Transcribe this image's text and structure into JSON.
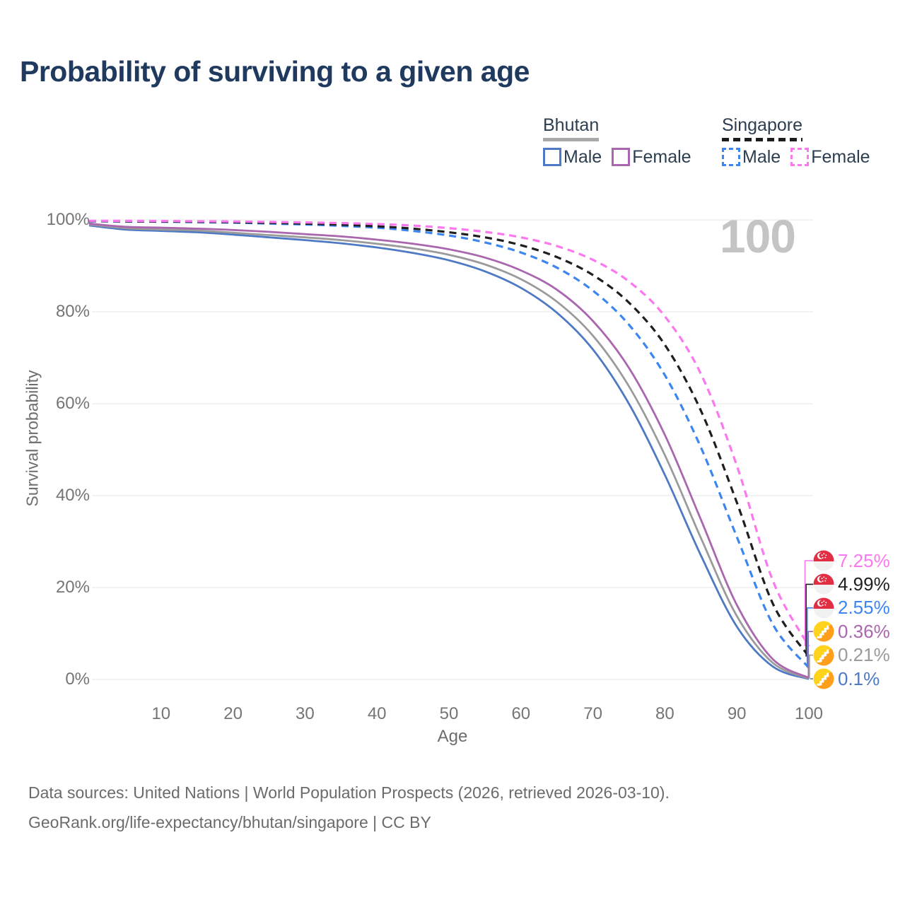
{
  "title": "Probability of surviving to a given age",
  "watermark_age": "100",
  "legend": {
    "groups": [
      {
        "country": "Bhutan",
        "line_style": "solid",
        "underline_color": "#a8a8a8",
        "items": [
          {
            "label": "Male",
            "color": "#4e79c5",
            "dashed": false
          },
          {
            "label": "Female",
            "color": "#aa66ae",
            "dashed": false
          }
        ]
      },
      {
        "country": "Singapore",
        "line_style": "dashed",
        "underline_color": "#1c1c1c",
        "items": [
          {
            "label": "Male",
            "color": "#3b86f0",
            "dashed": true
          },
          {
            "label": "Female",
            "color": "#fb78ee",
            "dashed": true
          }
        ]
      }
    ]
  },
  "axes": {
    "y_label": "Survival probability",
    "x_label": "Age",
    "y_ticks": [
      {
        "label": "0%",
        "value": 0
      },
      {
        "label": "20%",
        "value": 20
      },
      {
        "label": "40%",
        "value": 40
      },
      {
        "label": "60%",
        "value": 60
      },
      {
        "label": "80%",
        "value": 80
      },
      {
        "label": "100%",
        "value": 100
      }
    ],
    "x_ticks": [
      {
        "label": "10",
        "value": 10
      },
      {
        "label": "20",
        "value": 20
      },
      {
        "label": "30",
        "value": 30
      },
      {
        "label": "40",
        "value": 40
      },
      {
        "label": "50",
        "value": 50
      },
      {
        "label": "60",
        "value": 60
      },
      {
        "label": "70",
        "value": 70
      },
      {
        "label": "80",
        "value": 80
      },
      {
        "label": "90",
        "value": 90
      },
      {
        "label": "100",
        "value": 100
      }
    ]
  },
  "chart_data": {
    "type": "line",
    "title": "Probability of surviving to a given age",
    "xlabel": "Age",
    "ylabel": "Survival probability",
    "xlim": [
      0,
      100
    ],
    "ylim": [
      0,
      100
    ],
    "grid": "horizontal",
    "legend_position": "top-right",
    "x": [
      0,
      5,
      10,
      15,
      20,
      25,
      30,
      35,
      40,
      45,
      50,
      55,
      60,
      65,
      70,
      75,
      80,
      85,
      90,
      95,
      100
    ],
    "series": [
      {
        "name": "Bhutan Male",
        "country": "Bhutan",
        "sex": "Male",
        "color": "#4e79c5",
        "dashed": false,
        "flag": "bt",
        "end_label": "0.1%",
        "values": [
          98.8,
          97.9,
          97.6,
          97.3,
          96.8,
          96.2,
          95.6,
          94.9,
          94.0,
          92.8,
          91.2,
          88.8,
          85.2,
          79.8,
          71.8,
          60.0,
          44.5,
          27.0,
          11.5,
          2.8,
          0.1
        ]
      },
      {
        "name": "Bhutan Both sexes",
        "country": "Bhutan",
        "sex": "Both",
        "color": "#9b9b9b",
        "dashed": false,
        "flag": "bt",
        "end_label": "0.21%",
        "values": [
          99.0,
          98.2,
          97.9,
          97.7,
          97.2,
          96.7,
          96.2,
          95.6,
          94.8,
          93.8,
          92.4,
          90.3,
          87.1,
          82.2,
          74.8,
          63.8,
          48.8,
          30.8,
          13.8,
          3.6,
          0.21
        ]
      },
      {
        "name": "Bhutan Female",
        "country": "Bhutan",
        "sex": "Female",
        "color": "#aa66ae",
        "dashed": false,
        "flag": "bt",
        "end_label": "0.36%",
        "values": [
          99.2,
          98.5,
          98.3,
          98.1,
          97.8,
          97.4,
          96.9,
          96.4,
          95.7,
          94.8,
          93.6,
          91.8,
          89.0,
          84.8,
          78.0,
          67.8,
          53.2,
          34.8,
          16.2,
          4.4,
          0.36
        ]
      },
      {
        "name": "Singapore Male",
        "country": "Singapore",
        "sex": "Male",
        "color": "#3b86f0",
        "dashed": true,
        "flag": "sg",
        "end_label": "2.55%",
        "values": [
          99.7,
          99.65,
          99.6,
          99.5,
          99.4,
          99.2,
          99.0,
          98.7,
          98.3,
          97.6,
          96.6,
          95.1,
          92.9,
          89.6,
          84.6,
          77.2,
          66.2,
          50.5,
          31.0,
          12.0,
          2.55
        ]
      },
      {
        "name": "Singapore Both sexes",
        "country": "Singapore",
        "sex": "Both",
        "color": "#1f1f1f",
        "dashed": true,
        "flag": "sg",
        "end_label": "4.99%",
        "values": [
          99.75,
          99.7,
          99.65,
          99.6,
          99.5,
          99.35,
          99.2,
          98.95,
          98.6,
          98.1,
          97.3,
          96.2,
          94.5,
          91.9,
          88.0,
          82.0,
          72.8,
          58.5,
          38.5,
          16.5,
          4.99
        ]
      },
      {
        "name": "Singapore Female",
        "country": "Singapore",
        "sex": "Female",
        "color": "#fb78ee",
        "dashed": true,
        "flag": "sg",
        "end_label": "7.25%",
        "values": [
          99.8,
          99.78,
          99.75,
          99.7,
          99.65,
          99.55,
          99.45,
          99.3,
          99.1,
          98.75,
          98.2,
          97.4,
          96.2,
          94.3,
          91.3,
          86.6,
          79.0,
          66.5,
          46.5,
          21.5,
          7.25
        ]
      }
    ]
  },
  "footer": {
    "line1": "Data sources: United Nations | World Population Prospects (2026, retrieved 2026-03-10).",
    "line2": "GeoRank.org/life-expectancy/bhutan/singapore | CC BY"
  },
  "colors": {
    "grid": "#e9e9e9",
    "title": "#1f3a5e",
    "axis_text": "#757575",
    "watermark": "#c4c4c4"
  }
}
